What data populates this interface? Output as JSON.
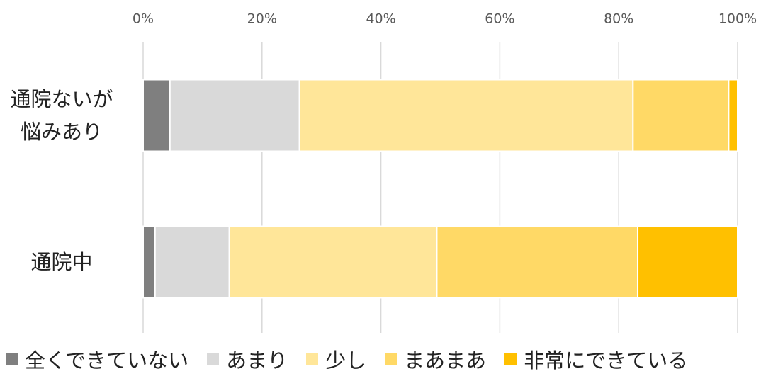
{
  "chart_data": {
    "type": "stacked-bar-horizontal",
    "categories": [
      "通院ないが悩みあり",
      "通院中"
    ],
    "series": [
      {
        "name": "全くできていない",
        "color": "#7f7f7f",
        "values": [
          4.5,
          2.0
        ]
      },
      {
        "name": "あまり",
        "color": "#d9d9d9",
        "values": [
          21.8,
          12.5
        ]
      },
      {
        "name": "少し",
        "color": "#ffe699",
        "values": [
          56.1,
          34.9
        ]
      },
      {
        "name": "まあまあ",
        "color": "#ffd966",
        "values": [
          16.1,
          33.8
        ]
      },
      {
        "name": "非常にできている",
        "color": "#ffc000",
        "values": [
          1.5,
          16.8
        ]
      }
    ],
    "xlim": [
      0,
      100
    ],
    "xticks": [
      {
        "value": 0,
        "label": "0%"
      },
      {
        "value": 20,
        "label": "20%"
      },
      {
        "value": 40,
        "label": "40%"
      },
      {
        "value": 60,
        "label": "60%"
      },
      {
        "value": 80,
        "label": "80%"
      },
      {
        "value": 100,
        "label": "100%"
      }
    ],
    "grid": true
  }
}
